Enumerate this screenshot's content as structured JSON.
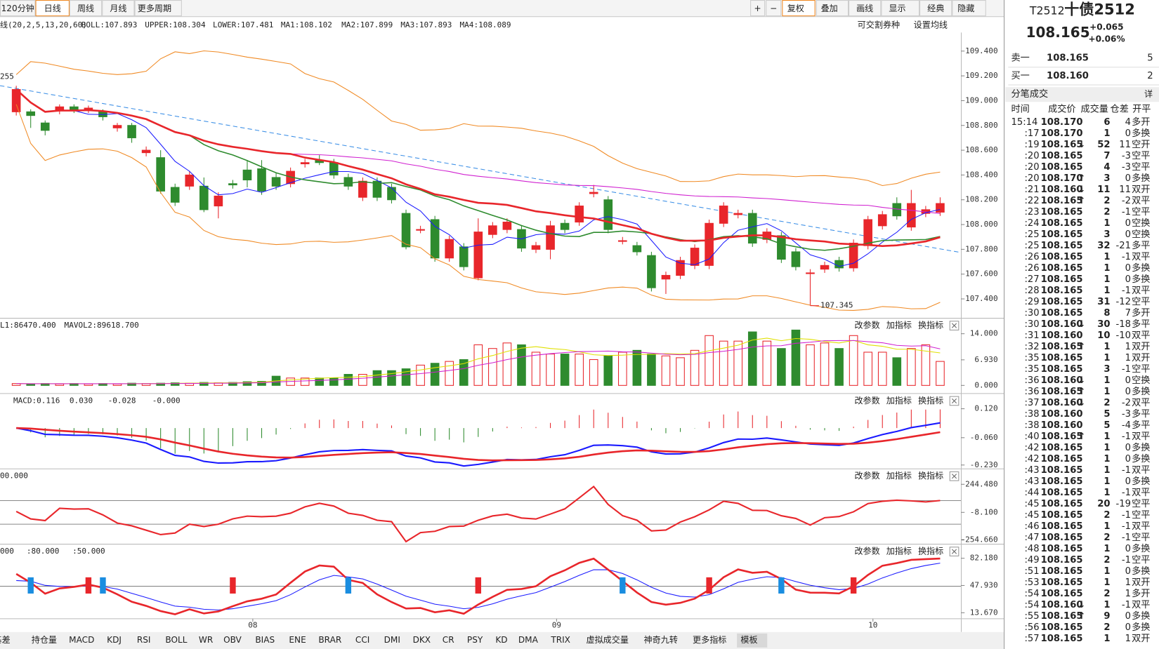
{
  "toolbar": {
    "periods": [
      "120分钟",
      "日线",
      "周线",
      "月线",
      "更多周期"
    ],
    "tools": [
      "+",
      "−",
      "复权",
      "叠加",
      "画线",
      "显示",
      "经典",
      "隐藏"
    ]
  },
  "main": {
    "legend": [
      "线(20,2,5,13,20,60)",
      "BOLL:107.893",
      "UPPER:108.304",
      "LOWER:107.481",
      "MA1:108.102",
      "MA2:107.899",
      "MA3:107.893",
      "MA4:108.089"
    ],
    "buttons": [
      "可交割券种",
      "设置均线"
    ],
    "ylim": [
      107.25,
      109.55
    ],
    "yticks": [
      {
        "value": 109.4,
        "label": "109.400"
      },
      {
        "value": 109.2,
        "label": "109.200"
      },
      {
        "value": 109.0,
        "label": "109.000"
      },
      {
        "value": 108.8,
        "label": "108.800"
      },
      {
        "value": 108.6,
        "label": "108.600"
      },
      {
        "value": 108.4,
        "label": "108.400"
      },
      {
        "value": 108.2,
        "label": "108.200"
      },
      {
        "value": 108.0,
        "label": "108.000"
      },
      {
        "value": 107.8,
        "label": "107.800"
      },
      {
        "value": 107.6,
        "label": "107.600"
      },
      {
        "value": 107.4,
        "label": "107.400"
      }
    ],
    "annotations": [
      "255",
      "107.345"
    ],
    "candles": [
      [
        108.91,
        109.12,
        108.88,
        109.09
      ],
      [
        108.91,
        108.93,
        108.78,
        108.88
      ],
      [
        108.82,
        108.84,
        108.72,
        108.76
      ],
      [
        108.92,
        108.97,
        108.89,
        108.95
      ],
      [
        108.95,
        108.97,
        108.9,
        108.92
      ],
      [
        108.92,
        108.96,
        108.9,
        108.94
      ],
      [
        108.91,
        108.93,
        108.84,
        108.87
      ],
      [
        108.78,
        108.82,
        108.75,
        108.8
      ],
      [
        108.8,
        108.82,
        108.66,
        108.7
      ],
      [
        108.58,
        108.63,
        108.55,
        108.6
      ],
      [
        108.54,
        108.6,
        108.25,
        108.27
      ],
      [
        108.3,
        108.33,
        108.15,
        108.18
      ],
      [
        108.31,
        108.43,
        108.28,
        108.4
      ],
      [
        108.31,
        108.38,
        108.1,
        108.12
      ],
      [
        108.15,
        108.26,
        108.05,
        108.23
      ],
      [
        108.33,
        108.36,
        108.29,
        108.32
      ],
      [
        108.44,
        108.52,
        108.3,
        108.36
      ],
      [
        108.45,
        108.52,
        108.24,
        108.27
      ],
      [
        108.38,
        108.42,
        108.28,
        108.31
      ],
      [
        108.33,
        108.46,
        108.3,
        108.43
      ],
      [
        108.49,
        108.53,
        108.46,
        108.5
      ],
      [
        108.52,
        108.56,
        108.48,
        108.5
      ],
      [
        108.5,
        108.53,
        108.37,
        108.4
      ],
      [
        108.38,
        108.41,
        108.28,
        108.31
      ],
      [
        108.22,
        108.38,
        108.19,
        108.35
      ],
      [
        108.35,
        108.38,
        108.19,
        108.22
      ],
      [
        108.3,
        108.33,
        108.17,
        108.2
      ],
      [
        108.09,
        108.12,
        107.8,
        107.82
      ],
      [
        107.96,
        107.99,
        107.93,
        107.96
      ],
      [
        108.04,
        108.07,
        107.7,
        107.73
      ],
      [
        107.73,
        107.91,
        107.7,
        107.88
      ],
      [
        107.82,
        107.85,
        107.63,
        107.66
      ],
      [
        107.57,
        108.05,
        107.55,
        107.94
      ],
      [
        107.92,
        108.02,
        107.89,
        107.99
      ],
      [
        107.96,
        108.05,
        107.93,
        108.02
      ],
      [
        107.96,
        107.99,
        107.78,
        107.81
      ],
      [
        107.8,
        107.86,
        107.77,
        107.83
      ],
      [
        107.8,
        108.03,
        107.72,
        107.99
      ],
      [
        108.01,
        108.04,
        107.93,
        107.96
      ],
      [
        108.02,
        108.18,
        107.99,
        108.15
      ],
      [
        108.25,
        108.32,
        108.22,
        108.26
      ],
      [
        108.2,
        108.23,
        107.93,
        107.96
      ],
      [
        107.87,
        107.9,
        107.84,
        107.87
      ],
      [
        107.83,
        107.86,
        107.75,
        107.78
      ],
      [
        107.75,
        107.78,
        107.46,
        107.49
      ],
      [
        107.56,
        107.62,
        107.44,
        107.59
      ],
      [
        107.59,
        107.74,
        107.56,
        107.71
      ],
      [
        107.67,
        107.84,
        107.64,
        107.81
      ],
      [
        107.67,
        108.04,
        107.64,
        108.01
      ],
      [
        108.01,
        108.18,
        107.98,
        108.15
      ],
      [
        108.08,
        108.12,
        108.05,
        108.09
      ],
      [
        108.09,
        108.12,
        107.82,
        107.85
      ],
      [
        107.88,
        107.97,
        107.85,
        107.94
      ],
      [
        107.91,
        107.94,
        107.69,
        107.72
      ],
      [
        107.78,
        107.81,
        107.63,
        107.66
      ],
      [
        107.61,
        107.64,
        107.35,
        107.61
      ],
      [
        107.64,
        107.7,
        107.61,
        107.67
      ],
      [
        107.71,
        107.74,
        107.62,
        107.65
      ],
      [
        107.65,
        107.88,
        107.62,
        107.85
      ],
      [
        107.83,
        108.07,
        107.8,
        108.04
      ],
      [
        107.99,
        108.11,
        107.96,
        108.08
      ],
      [
        108.17,
        108.22,
        108.04,
        108.07
      ],
      [
        107.98,
        108.28,
        107.95,
        108.17
      ],
      [
        108.09,
        108.15,
        108.06,
        108.12
      ],
      [
        108.1,
        108.22,
        108.07,
        108.17
      ]
    ]
  },
  "volume_panel": {
    "legend": [
      "L1:86470.400",
      "MAVOL2:89618.700"
    ],
    "ylim": [
      -1.6,
      18
    ],
    "yticks": [
      {
        "value": 14,
        "label": "14.000"
      },
      {
        "value": 6.93,
        "label": "6.930"
      },
      {
        "value": 0,
        "label": "0.000"
      }
    ],
    "values": [
      0.5,
      0.4,
      0.5,
      0.4,
      0.5,
      0.4,
      0.5,
      0.4,
      0.6,
      0.5,
      0.6,
      0.7,
      0.6,
      0.8,
      0.7,
      0.8,
      1,
      1.1,
      2.5,
      2,
      2,
      2,
      2,
      3,
      3,
      4,
      4,
      4.5,
      5.5,
      6,
      6.5,
      7,
      11,
      10,
      11.5,
      11,
      9,
      8.5,
      8.5,
      8.5,
      7,
      8,
      9,
      9.5,
      8.5,
      8,
      7.5,
      9.5,
      13.5,
      12,
      12,
      14.5,
      12,
      10,
      15,
      11,
      11.5,
      10,
      13.5,
      9,
      9,
      7.5,
      10,
      11,
      6.5
    ]
  },
  "macd_panel": {
    "legend": [
      "MACD:0.116",
      "0.030",
      "-0.028",
      "-0.000"
    ],
    "ylim": [
      -0.24,
      0.21
    ],
    "yticks": [
      {
        "value": 0.12,
        "label": "0.120"
      },
      {
        "value": -0.06,
        "label": "-0.060"
      },
      {
        "value": -0.23,
        "label": "-0.230"
      }
    ]
  },
  "cci_panel": {
    "legend": [
      "00.000"
    ],
    "ylim": [
      -274,
      377
    ],
    "yticks": [
      {
        "value": 244.48,
        "label": "244.480"
      },
      {
        "value": -8.1,
        "label": "-8.100"
      },
      {
        "value": -254.66,
        "label": "-254.660"
      }
    ]
  },
  "kdj_panel": {
    "legend": [
      "000",
      ":80.000",
      ":50.000"
    ],
    "ylim": [
      8,
      99
    ],
    "yticks": [
      {
        "value": 82.18,
        "label": "82.180"
      },
      {
        "value": 47.93,
        "label": "47.930"
      },
      {
        "value": 13.67,
        "label": "13.670"
      }
    ]
  },
  "panel_buttons": [
    "改参数",
    "加指标",
    "换指标"
  ],
  "x_labels": [
    "08",
    "09",
    "10"
  ],
  "bottom_tabs": [
    "基差",
    "持仓量",
    "MACD",
    "KDJ",
    "RSI",
    "BOLL",
    "WR",
    "OBV",
    "BIAS",
    "ENE",
    "BRAR",
    "CCI",
    "DMI",
    "DKX",
    "CR",
    "PSY",
    "KD",
    "DMA",
    "TRIX",
    "虚拟成交量",
    "神奇九转",
    "更多指标",
    "模板"
  ],
  "quote": {
    "code": "T2512",
    "name": "十债2512",
    "price": "108.165",
    "change": "+0.065",
    "pct": "+0.06%"
  },
  "book": [
    {
      "side": "卖一",
      "price": "108.165",
      "qty": "5"
    },
    {
      "side": "买一",
      "price": "108.160",
      "qty": "2"
    }
  ],
  "trades": {
    "title": "分笔成交",
    "detail": "详",
    "headers": [
      "时间",
      "成交价",
      "成交量",
      "仓差",
      "开平"
    ],
    "rows": [
      {
        "t": "15:14",
        "p": "108.170",
        "v": "6",
        "o": "4",
        "k": "多开"
      },
      {
        "t": ":17",
        "p": "108.170",
        "v": "1",
        "o": "0",
        "k": "多换"
      },
      {
        "t": ":19",
        "p": "108.165",
        "d": "↓",
        "v": "52",
        "o": "11",
        "k": "空开"
      },
      {
        "t": ":20",
        "p": "108.165",
        "v": "7",
        "o": "-3",
        "k": "空平"
      },
      {
        "t": ":20",
        "p": "108.165",
        "v": "4",
        "o": "-3",
        "k": "空平"
      },
      {
        "t": ":20",
        "p": "108.170",
        "d": "↑",
        "v": "3",
        "o": "0",
        "k": "多换"
      },
      {
        "t": ":21",
        "p": "108.160",
        "d": "↓",
        "v": "11",
        "o": "11",
        "k": "双开"
      },
      {
        "t": ":22",
        "p": "108.165",
        "d": "↑",
        "v": "2",
        "o": "-2",
        "k": "双平"
      },
      {
        "t": ":23",
        "p": "108.165",
        "v": "2",
        "o": "-1",
        "k": "空平"
      },
      {
        "t": ":24",
        "p": "108.165",
        "v": "1",
        "o": "0",
        "k": "空换"
      },
      {
        "t": ":25",
        "p": "108.165",
        "v": "3",
        "o": "0",
        "k": "空换"
      },
      {
        "t": ":25",
        "p": "108.165",
        "v": "32",
        "o": "-21",
        "k": "多平"
      },
      {
        "t": ":26",
        "p": "108.165",
        "v": "1",
        "o": "-1",
        "k": "双平"
      },
      {
        "t": ":26",
        "p": "108.165",
        "v": "1",
        "o": "0",
        "k": "多换"
      },
      {
        "t": ":27",
        "p": "108.165",
        "v": "1",
        "o": "0",
        "k": "多换"
      },
      {
        "t": ":28",
        "p": "108.165",
        "v": "1",
        "o": "-1",
        "k": "双平"
      },
      {
        "t": ":29",
        "p": "108.165",
        "v": "31",
        "o": "-12",
        "k": "空平"
      },
      {
        "t": ":30",
        "p": "108.165",
        "v": "8",
        "o": "7",
        "k": "多开"
      },
      {
        "t": ":30",
        "p": "108.160",
        "d": "↓",
        "v": "30",
        "o": "-18",
        "k": "多平"
      },
      {
        "t": ":31",
        "p": "108.160",
        "v": "10",
        "o": "-10",
        "k": "双平"
      },
      {
        "t": ":32",
        "p": "108.165",
        "d": "↑",
        "v": "1",
        "o": "1",
        "k": "双开"
      },
      {
        "t": ":35",
        "p": "108.165",
        "v": "1",
        "o": "1",
        "k": "双开"
      },
      {
        "t": ":35",
        "p": "108.165",
        "v": "3",
        "o": "-1",
        "k": "空平"
      },
      {
        "t": ":36",
        "p": "108.160",
        "d": "↓",
        "v": "1",
        "o": "0",
        "k": "空换"
      },
      {
        "t": ":36",
        "p": "108.165",
        "d": "↑",
        "v": "1",
        "o": "0",
        "k": "多换"
      },
      {
        "t": ":37",
        "p": "108.160",
        "d": "↓",
        "v": "2",
        "o": "-2",
        "k": "双平"
      },
      {
        "t": ":38",
        "p": "108.160",
        "v": "5",
        "o": "-3",
        "k": "多平"
      },
      {
        "t": ":38",
        "p": "108.160",
        "v": "5",
        "o": "-4",
        "k": "多平"
      },
      {
        "t": ":40",
        "p": "108.165",
        "d": "↑",
        "v": "1",
        "o": "-1",
        "k": "双平"
      },
      {
        "t": ":42",
        "p": "108.165",
        "v": "1",
        "o": "0",
        "k": "多换"
      },
      {
        "t": ":42",
        "p": "108.165",
        "v": "1",
        "o": "0",
        "k": "多换"
      },
      {
        "t": ":43",
        "p": "108.165",
        "v": "1",
        "o": "-1",
        "k": "双平"
      },
      {
        "t": ":43",
        "p": "108.165",
        "v": "1",
        "o": "0",
        "k": "多换"
      },
      {
        "t": ":44",
        "p": "108.165",
        "v": "1",
        "o": "-1",
        "k": "双平"
      },
      {
        "t": ":45",
        "p": "108.165",
        "v": "20",
        "o": "-19",
        "k": "空平"
      },
      {
        "t": ":45",
        "p": "108.165",
        "v": "2",
        "o": "-1",
        "k": "空平"
      },
      {
        "t": ":46",
        "p": "108.165",
        "v": "1",
        "o": "-1",
        "k": "双平"
      },
      {
        "t": ":47",
        "p": "108.165",
        "v": "2",
        "o": "-1",
        "k": "空平"
      },
      {
        "t": ":48",
        "p": "108.165",
        "v": "1",
        "o": "0",
        "k": "多换"
      },
      {
        "t": ":49",
        "p": "108.165",
        "v": "2",
        "o": "-1",
        "k": "空平"
      },
      {
        "t": ":51",
        "p": "108.165",
        "v": "1",
        "o": "0",
        "k": "多换"
      },
      {
        "t": ":53",
        "p": "108.165",
        "v": "1",
        "o": "1",
        "k": "双开"
      },
      {
        "t": ":54",
        "p": "108.165",
        "v": "2",
        "o": "1",
        "k": "多开"
      },
      {
        "t": ":54",
        "p": "108.160",
        "d": "↓",
        "v": "1",
        "o": "-1",
        "k": "双平"
      },
      {
        "t": ":55",
        "p": "108.165",
        "d": "↑",
        "v": "9",
        "o": "0",
        "k": "多换"
      },
      {
        "t": ":56",
        "p": "108.165",
        "v": "2",
        "o": "0",
        "k": "多换"
      },
      {
        "t": ":57",
        "p": "108.165",
        "v": "1",
        "o": "1",
        "k": "双开"
      }
    ]
  }
}
